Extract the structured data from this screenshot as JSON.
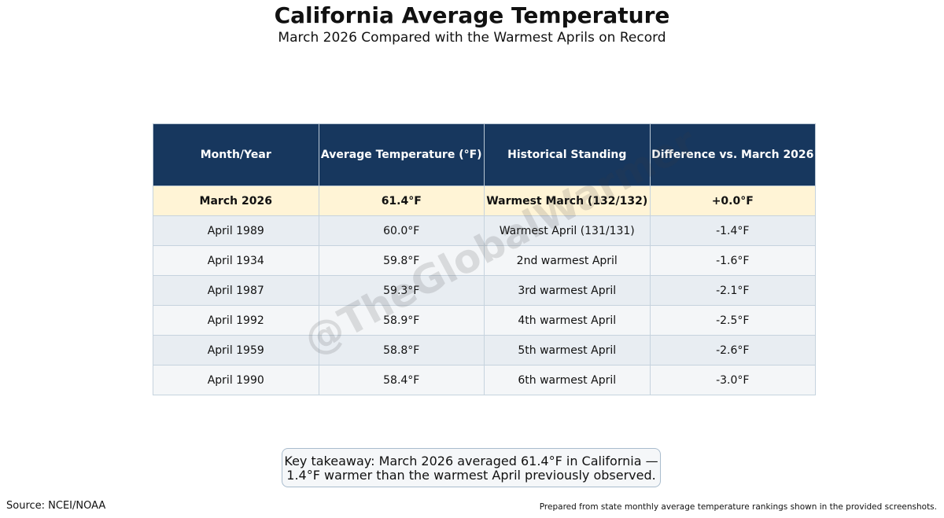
{
  "title": "California Average Temperature",
  "subtitle": "March 2026 Compared with the Warmest Aprils on Record",
  "watermark": "@TheGlobalWarmer",
  "chart_data": {
    "type": "table",
    "columns": [
      "Month/Year",
      "Average Temperature (°F)",
      "Historical Standing",
      "Difference vs. March 2026"
    ],
    "rows": [
      [
        "March 2026",
        "61.4°F",
        "Warmest March (132/132)",
        "+0.0°F"
      ],
      [
        "April 1989",
        "60.0°F",
        "Warmest April (131/131)",
        "-1.4°F"
      ],
      [
        "April 1934",
        "59.8°F",
        "2nd warmest April",
        "-1.6°F"
      ],
      [
        "April 1987",
        "59.3°F",
        "3rd warmest April",
        "-2.1°F"
      ],
      [
        "April 1992",
        "58.9°F",
        "4th warmest April",
        "-2.5°F"
      ],
      [
        "April 1959",
        "58.8°F",
        "5th warmest April",
        "-2.6°F"
      ],
      [
        "April 1990",
        "58.4°F",
        "6th warmest April",
        "-3.0°F"
      ]
    ],
    "highlight_row": 0,
    "colors": {
      "header_bg": "#17375e",
      "header_text": "#ffffff",
      "highlight_bg": "#fff4d6",
      "row_alt_1": "#e8edf2",
      "row_alt_2": "#f4f6f8"
    }
  },
  "takeaway": {
    "line1": "Key takeaway: March 2026 averaged 61.4°F in California —",
    "line2": "1.4°F warmer than the warmest April previously observed."
  },
  "source": "Source: NCEI/NOAA",
  "note": "Prepared from state monthly average temperature rankings shown in the provided screenshots."
}
